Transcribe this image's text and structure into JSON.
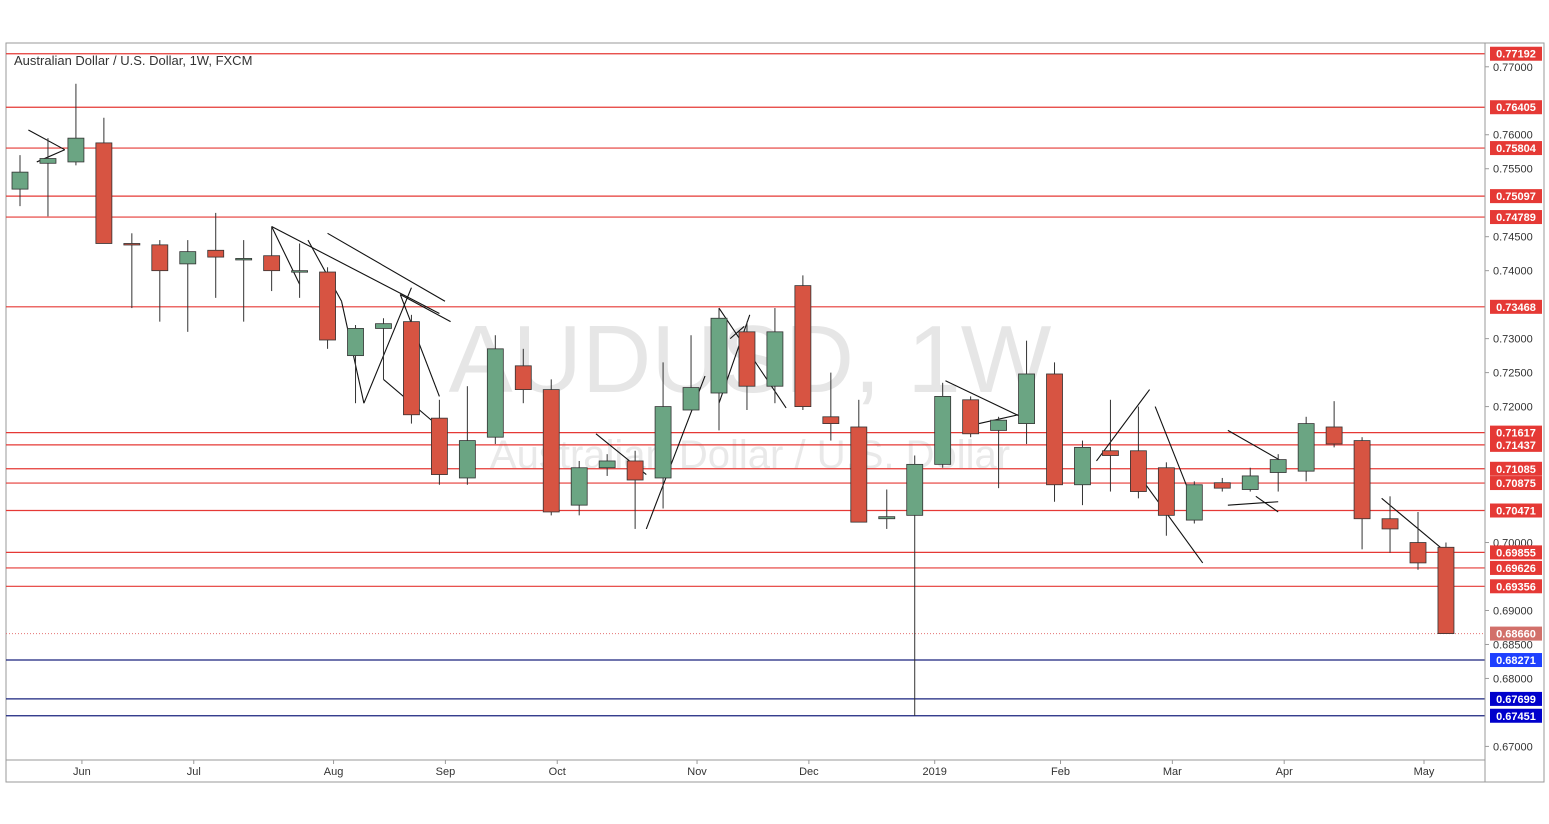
{
  "chart_data": {
    "type": "candlestick",
    "title": "Australian Dollar / U.S. Dollar, 1W, FXCM",
    "watermark": {
      "symbol": "AUDUSD, 1W",
      "description": "Australian Dollar / U.S. Dollar"
    },
    "ylim": [
      0.668,
      0.7735
    ],
    "y_ticks": [
      "0.77000",
      "0.76000",
      "0.75500",
      "0.74500",
      "0.74000",
      "0.73000",
      "0.72500",
      "0.72000",
      "0.70000",
      "0.69000",
      "0.68500",
      "0.68000",
      "0.67000"
    ],
    "x_labels": [
      {
        "label": "Jun",
        "bar": 2
      },
      {
        "label": "Jul",
        "bar": 6
      },
      {
        "label": "Aug",
        "bar": 11
      },
      {
        "label": "Sep",
        "bar": 15
      },
      {
        "label": "Oct",
        "bar": 19
      },
      {
        "label": "Nov",
        "bar": 24
      },
      {
        "label": "Dec",
        "bar": 28
      },
      {
        "label": "2019",
        "bar": 32.5
      },
      {
        "label": "Feb",
        "bar": 37
      },
      {
        "label": "Mar",
        "bar": 41
      },
      {
        "label": "Apr",
        "bar": 45
      },
      {
        "label": "May",
        "bar": 50
      }
    ],
    "candles": [
      {
        "o": 0.752,
        "h": 0.757,
        "l": 0.7495,
        "c": 0.7545
      },
      {
        "o": 0.7558,
        "h": 0.7595,
        "l": 0.748,
        "c": 0.7565
      },
      {
        "o": 0.756,
        "h": 0.7675,
        "l": 0.7555,
        "c": 0.7595
      },
      {
        "o": 0.7588,
        "h": 0.7625,
        "l": 0.744,
        "c": 0.744
      },
      {
        "o": 0.744,
        "h": 0.7455,
        "l": 0.7345,
        "c": 0.7438
      },
      {
        "o": 0.7438,
        "h": 0.7445,
        "l": 0.7325,
        "c": 0.74
      },
      {
        "o": 0.741,
        "h": 0.7445,
        "l": 0.731,
        "c": 0.7428
      },
      {
        "o": 0.743,
        "h": 0.7485,
        "l": 0.736,
        "c": 0.742
      },
      {
        "o": 0.7418,
        "h": 0.7445,
        "l": 0.7325,
        "c": 0.7418
      },
      {
        "o": 0.7422,
        "h": 0.7465,
        "l": 0.737,
        "c": 0.74
      },
      {
        "o": 0.74,
        "h": 0.744,
        "l": 0.736,
        "c": 0.74
      },
      {
        "o": 0.7398,
        "h": 0.7405,
        "l": 0.7285,
        "c": 0.7298
      },
      {
        "o": 0.7275,
        "h": 0.732,
        "l": 0.7205,
        "c": 0.7315
      },
      {
        "o": 0.7315,
        "h": 0.733,
        "l": 0.724,
        "c": 0.7322
      },
      {
        "o": 0.7325,
        "h": 0.7335,
        "l": 0.7175,
        "c": 0.7188
      },
      {
        "o": 0.7183,
        "h": 0.721,
        "l": 0.7085,
        "c": 0.71
      },
      {
        "o": 0.7095,
        "h": 0.723,
        "l": 0.7085,
        "c": 0.715
      },
      {
        "o": 0.7155,
        "h": 0.7305,
        "l": 0.7145,
        "c": 0.7285
      },
      {
        "o": 0.726,
        "h": 0.7285,
        "l": 0.7205,
        "c": 0.7225
      },
      {
        "o": 0.7225,
        "h": 0.724,
        "l": 0.704,
        "c": 0.7045
      },
      {
        "o": 0.7055,
        "h": 0.712,
        "l": 0.704,
        "c": 0.711
      },
      {
        "o": 0.711,
        "h": 0.713,
        "l": 0.7098,
        "c": 0.712
      },
      {
        "o": 0.712,
        "h": 0.7135,
        "l": 0.702,
        "c": 0.7092
      },
      {
        "o": 0.7095,
        "h": 0.7265,
        "l": 0.705,
        "c": 0.72
      },
      {
        "o": 0.7195,
        "h": 0.7305,
        "l": 0.7195,
        "c": 0.7228
      },
      {
        "o": 0.722,
        "h": 0.7345,
        "l": 0.7165,
        "c": 0.733
      },
      {
        "o": 0.731,
        "h": 0.7325,
        "l": 0.7195,
        "c": 0.723
      },
      {
        "o": 0.723,
        "h": 0.7345,
        "l": 0.7205,
        "c": 0.731
      },
      {
        "o": 0.7378,
        "h": 0.7393,
        "l": 0.7195,
        "c": 0.72
      },
      {
        "o": 0.7185,
        "h": 0.725,
        "l": 0.715,
        "c": 0.7175
      },
      {
        "o": 0.717,
        "h": 0.721,
        "l": 0.703,
        "c": 0.703
      },
      {
        "o": 0.7035,
        "h": 0.7078,
        "l": 0.702,
        "c": 0.7038
      },
      {
        "o": 0.704,
        "h": 0.7128,
        "l": 0.6745,
        "c": 0.7115
      },
      {
        "o": 0.7115,
        "h": 0.7235,
        "l": 0.711,
        "c": 0.7215
      },
      {
        "o": 0.721,
        "h": 0.7215,
        "l": 0.7155,
        "c": 0.716
      },
      {
        "o": 0.7165,
        "h": 0.7185,
        "l": 0.708,
        "c": 0.718
      },
      {
        "o": 0.7175,
        "h": 0.7297,
        "l": 0.7145,
        "c": 0.7248
      },
      {
        "o": 0.7248,
        "h": 0.7265,
        "l": 0.706,
        "c": 0.7085
      },
      {
        "o": 0.7085,
        "h": 0.715,
        "l": 0.7055,
        "c": 0.714
      },
      {
        "o": 0.7135,
        "h": 0.721,
        "l": 0.7075,
        "c": 0.7128
      },
      {
        "o": 0.7135,
        "h": 0.72,
        "l": 0.7065,
        "c": 0.7075
      },
      {
        "o": 0.711,
        "h": 0.7118,
        "l": 0.701,
        "c": 0.704
      },
      {
        "o": 0.7033,
        "h": 0.709,
        "l": 0.7028,
        "c": 0.7085
      },
      {
        "o": 0.7088,
        "h": 0.7095,
        "l": 0.7075,
        "c": 0.708
      },
      {
        "o": 0.7078,
        "h": 0.711,
        "l": 0.7075,
        "c": 0.7098
      },
      {
        "o": 0.7103,
        "h": 0.713,
        "l": 0.7075,
        "c": 0.7122
      },
      {
        "o": 0.7105,
        "h": 0.7185,
        "l": 0.709,
        "c": 0.7175
      },
      {
        "o": 0.717,
        "h": 0.7208,
        "l": 0.714,
        "c": 0.7145
      },
      {
        "o": 0.715,
        "h": 0.7155,
        "l": 0.699,
        "c": 0.7035
      },
      {
        "o": 0.7035,
        "h": 0.7068,
        "l": 0.6985,
        "c": 0.702
      },
      {
        "o": 0.7,
        "h": 0.7045,
        "l": 0.696,
        "c": 0.697
      },
      {
        "o": 0.6993,
        "h": 0.7,
        "l": 0.6866,
        "c": 0.6866
      }
    ],
    "levels": [
      {
        "value": 0.77192,
        "label": "0.77192",
        "kind": "resistance"
      },
      {
        "value": 0.76405,
        "label": "0.76405",
        "kind": "resistance"
      },
      {
        "value": 0.75804,
        "label": "0.75804",
        "kind": "resistance"
      },
      {
        "value": 0.75097,
        "label": "0.75097",
        "kind": "resistance"
      },
      {
        "value": 0.74789,
        "label": "0.74789",
        "kind": "resistance"
      },
      {
        "value": 0.73468,
        "label": "0.73468",
        "kind": "resistance"
      },
      {
        "value": 0.71617,
        "label": "0.71617",
        "kind": "resistance"
      },
      {
        "value": 0.71437,
        "label": "0.71437",
        "kind": "resistance"
      },
      {
        "value": 0.71085,
        "label": "0.71085",
        "kind": "resistance"
      },
      {
        "value": 0.70875,
        "label": "0.70875",
        "kind": "resistance"
      },
      {
        "value": 0.70471,
        "label": "0.70471",
        "kind": "resistance"
      },
      {
        "value": 0.69855,
        "label": "0.69855",
        "kind": "resistance"
      },
      {
        "value": 0.69626,
        "label": "0.69626",
        "kind": "resistance"
      },
      {
        "value": 0.69356,
        "label": "0.69356",
        "kind": "resistance"
      },
      {
        "value": 0.68271,
        "label": "0.68271",
        "kind": "support"
      },
      {
        "value": 0.67699,
        "label": "0.67699",
        "kind": "support"
      },
      {
        "value": 0.67451,
        "label": "0.67451",
        "kind": "support"
      }
    ],
    "current_price": {
      "value": 0.6866,
      "label": "0.68660"
    },
    "trendlines": [
      [
        0.3,
        0.7607,
        1.6,
        0.7578
      ],
      [
        1.6,
        0.7578,
        0.6,
        0.756
      ],
      [
        9.0,
        0.7465,
        10.0,
        0.738
      ],
      [
        9.0,
        0.7465,
        15.0,
        0.7337
      ],
      [
        10.3,
        0.7445,
        11.5,
        0.7355
      ],
      [
        11.0,
        0.7455,
        15.2,
        0.7355
      ],
      [
        11.5,
        0.7355,
        12.3,
        0.7205
      ],
      [
        12.3,
        0.7205,
        14.0,
        0.7375
      ],
      [
        13.0,
        0.724,
        15.0,
        0.717
      ],
      [
        13.6,
        0.7365,
        15.0,
        0.7215
      ],
      [
        13.6,
        0.7365,
        15.4,
        0.7325
      ],
      [
        20.6,
        0.716,
        22.4,
        0.71
      ],
      [
        22.4,
        0.702,
        24.5,
        0.7245
      ],
      [
        25.4,
        0.73,
        25.9,
        0.7318
      ],
      [
        25.0,
        0.7345,
        27.4,
        0.7198
      ],
      [
        25.0,
        0.7205,
        26.1,
        0.7335
      ],
      [
        33.1,
        0.7238,
        35.8,
        0.7185
      ],
      [
        34.3,
        0.7175,
        35.7,
        0.7188
      ],
      [
        38.5,
        0.712,
        40.4,
        0.7225
      ],
      [
        40.6,
        0.72,
        42.0,
        0.7055
      ],
      [
        40.0,
        0.71,
        42.3,
        0.697
      ],
      [
        43.2,
        0.7165,
        45.2,
        0.7118
      ],
      [
        43.2,
        0.7055,
        45.0,
        0.706
      ],
      [
        44.2,
        0.7068,
        45.0,
        0.7045
      ],
      [
        48.7,
        0.7065,
        50.8,
        0.6993
      ]
    ]
  }
}
